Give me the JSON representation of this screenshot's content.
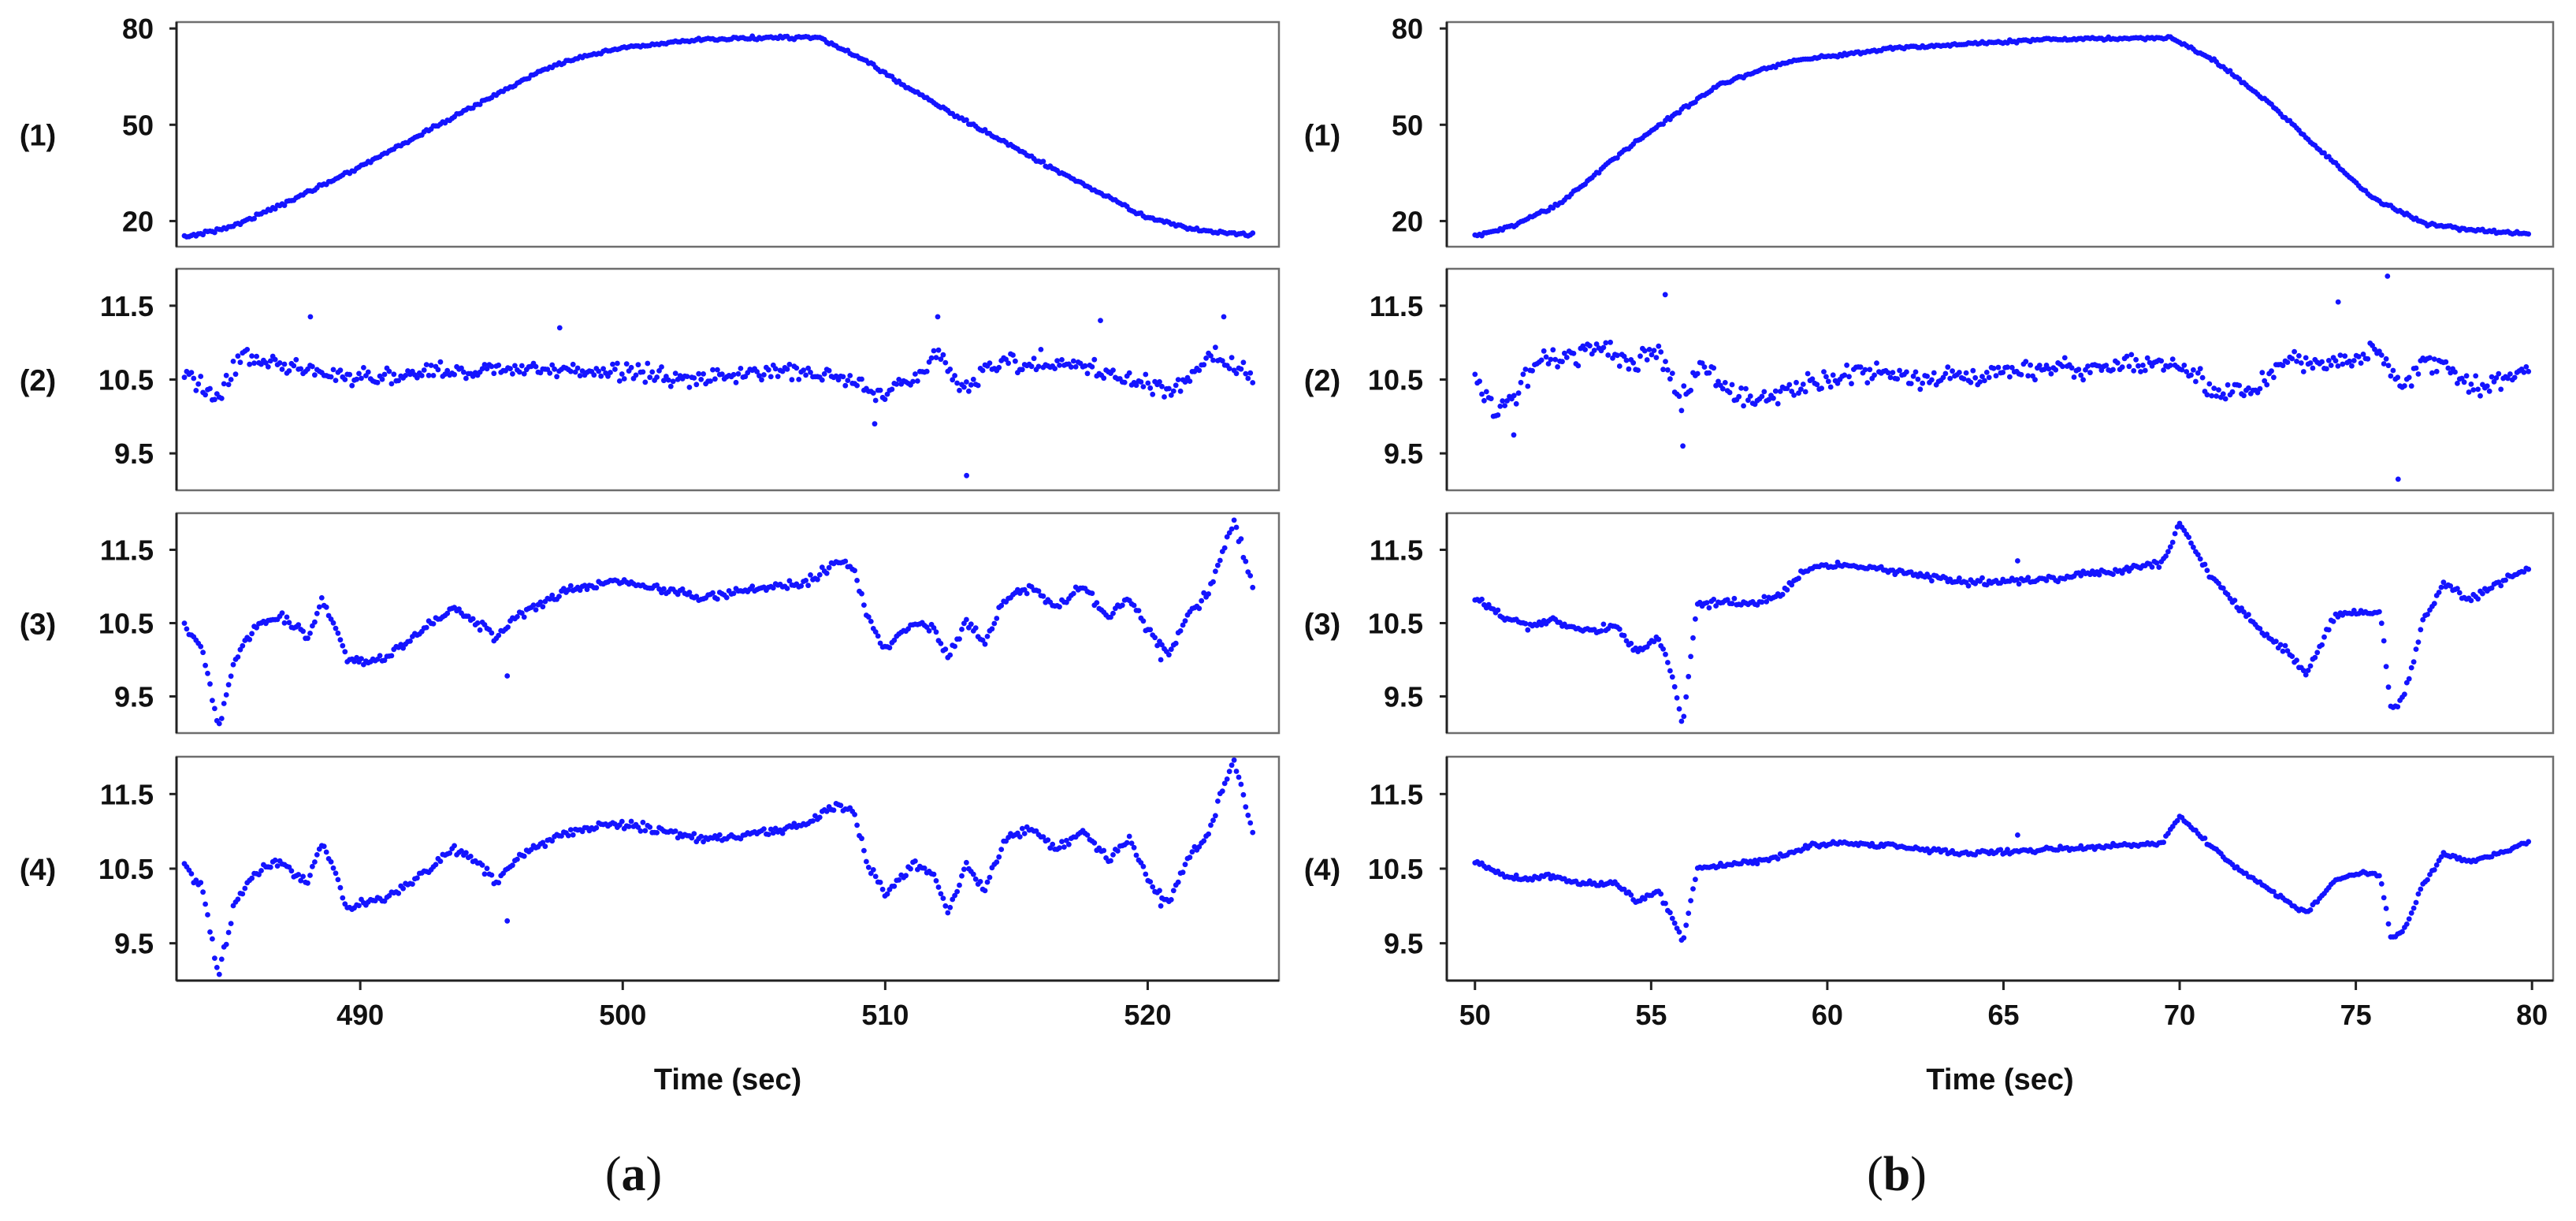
{
  "figure": {
    "caption_a": "a",
    "caption_b": "b"
  },
  "chart_data": [
    {
      "id": "a",
      "type": "scatter",
      "xlabel": "Time (sec)",
      "x_ticks": [
        490,
        500,
        510,
        520
      ],
      "xlim": [
        483,
        525
      ],
      "x_range": [
        483.3,
        524.0
      ],
      "panels": [
        {
          "label": "(1)",
          "ylim": [
            12,
            82
          ],
          "y_ticks": [
            "20",
            "50",
            "80"
          ],
          "y_tick_values": [
            20,
            50,
            80
          ],
          "series_color": "#1414ff",
          "dot_size": 3.4,
          "x": [
            483.3,
            485,
            487,
            490,
            493,
            496,
            497.5,
            500,
            503,
            506,
            507.5,
            509,
            512,
            516,
            520,
            522,
            523.2,
            524
          ],
          "y": [
            15.0,
            18,
            25,
            37,
            50,
            63,
            69,
            74,
            76.5,
            77.3,
            77,
            71,
            56,
            38,
            21,
            17,
            16,
            16
          ],
          "noise_amp": 0.05
        },
        {
          "label": "(2)",
          "ylim": [
            9.0,
            12.0
          ],
          "y_ticks": [
            "9.5",
            "10.5",
            "11.5"
          ],
          "y_tick_values": [
            9.5,
            10.5,
            11.5
          ],
          "series_color": "#1414ff",
          "dot_size": 3.4,
          "x": [
            483.3,
            484.5,
            485.5,
            487,
            489,
            491,
            493,
            495,
            497,
            500,
            503,
            505,
            507,
            509,
            510,
            511,
            512,
            513,
            514,
            516,
            518,
            519,
            520,
            521,
            522.5,
            524
          ],
          "y": [
            10.6,
            10.25,
            10.8,
            10.7,
            10.55,
            10.55,
            10.6,
            10.65,
            10.65,
            10.6,
            10.5,
            10.6,
            10.6,
            10.45,
            10.3,
            10.5,
            10.85,
            10.35,
            10.7,
            10.75,
            10.65,
            10.5,
            10.45,
            10.35,
            10.85,
            10.5
          ],
          "noise_amp": 0.12,
          "outliers": [
            [
              513.1,
              9.2
            ],
            [
              488.1,
              11.35
            ],
            [
              512.0,
              11.35
            ],
            [
              497.6,
              11.2
            ],
            [
              518.2,
              11.3
            ],
            [
              522.9,
              11.35
            ],
            [
              509.6,
              9.9
            ]
          ]
        },
        {
          "label": "(3)",
          "ylim": [
            9.0,
            12.0
          ],
          "y_ticks": [
            "9.5",
            "10.5",
            "11.5"
          ],
          "y_tick_values": [
            9.5,
            10.5,
            11.5
          ],
          "series_color": "#1414ff",
          "dot_size": 3.4,
          "x": [
            483.3,
            484.0,
            484.6,
            485.2,
            486,
            487,
            488,
            488.5,
            489,
            489.5,
            490.2,
            491,
            492,
            493.5,
            494.5,
            495.2,
            496,
            497,
            498,
            499.5,
            501,
            503,
            505,
            507,
            508.2,
            508.8,
            509.3,
            510,
            511,
            511.8,
            512.4,
            513.1,
            513.8,
            514.5,
            515.5,
            516.5,
            517.5,
            518.5,
            519.3,
            520.1,
            520.8,
            521.5,
            522.3,
            522.8,
            523.3,
            524
          ],
          "y": [
            10.5,
            10.15,
            9.05,
            10.0,
            10.45,
            10.6,
            10.3,
            10.8,
            10.5,
            10.0,
            9.95,
            10.05,
            10.3,
            10.7,
            10.5,
            10.3,
            10.6,
            10.8,
            10.95,
            11.05,
            11.0,
            10.85,
            10.95,
            11.05,
            11.35,
            11.25,
            10.6,
            10.15,
            10.5,
            10.45,
            10.0,
            10.55,
            10.2,
            10.8,
            11.0,
            10.7,
            11.0,
            10.6,
            10.85,
            10.35,
            10.05,
            10.6,
            10.9,
            11.4,
            11.9,
            11.0
          ],
          "noise_amp": 0.06,
          "outliers": [
            [
              495.6,
              9.78
            ],
            [
              520.5,
              10.0
            ]
          ]
        },
        {
          "label": "(4)",
          "ylim": [
            9.0,
            12.0
          ],
          "y_ticks": [
            "9.5",
            "10.5",
            "11.5"
          ],
          "y_tick_values": [
            9.5,
            10.5,
            11.5
          ],
          "series_color": "#1414ff",
          "dot_size": 3.4,
          "x": [
            483.3,
            484.0,
            484.6,
            485.2,
            486,
            487,
            488,
            488.5,
            489,
            489.5,
            490.2,
            491,
            492,
            493.5,
            494.5,
            495.2,
            496,
            497,
            498,
            499.5,
            501,
            503,
            505,
            507,
            508.2,
            508.8,
            509.3,
            510,
            511,
            511.8,
            512.4,
            513.1,
            513.8,
            514.5,
            515.5,
            516.5,
            517.5,
            518.5,
            519.3,
            520.1,
            520.8,
            521.5,
            522.3,
            522.8,
            523.3,
            524
          ],
          "y": [
            10.55,
            10.2,
            9.05,
            10.05,
            10.45,
            10.6,
            10.3,
            10.85,
            10.5,
            9.95,
            10.05,
            10.1,
            10.35,
            10.75,
            10.6,
            10.3,
            10.65,
            10.85,
            11.0,
            11.1,
            11.05,
            10.9,
            10.95,
            11.1,
            11.35,
            11.25,
            10.6,
            10.15,
            10.55,
            10.45,
            9.9,
            10.55,
            10.2,
            10.85,
            11.05,
            10.75,
            11.0,
            10.65,
            10.9,
            10.3,
            10.05,
            10.6,
            10.95,
            11.5,
            11.95,
            11.0
          ],
          "noise_amp": 0.06,
          "outliers": [
            [
              495.6,
              9.8
            ],
            [
              520.5,
              10.0
            ]
          ]
        }
      ]
    },
    {
      "id": "b",
      "type": "scatter",
      "xlabel": "Time (sec)",
      "x_ticks": [
        50,
        55,
        60,
        65,
        70,
        75,
        80
      ],
      "xlim": [
        49.2,
        80.6
      ],
      "x_range": [
        50.0,
        79.9
      ],
      "panels": [
        {
          "label": "(1)",
          "ylim": [
            12,
            82
          ],
          "y_ticks": [
            "20",
            "50",
            "80"
          ],
          "y_tick_values": [
            20,
            50,
            80
          ],
          "series_color": "#1414ff",
          "dot_size": 3.4,
          "x": [
            50.0,
            51,
            52.5,
            54,
            55.5,
            57,
            59,
            62,
            66,
            69,
            69.8,
            71,
            72.5,
            74,
            75.5,
            77,
            78.5,
            79.9
          ],
          "y": [
            15.5,
            18,
            26,
            40,
            52,
            63,
            70,
            74,
            76.5,
            77,
            76.8,
            70,
            57,
            42,
            27,
            19,
            17,
            16
          ],
          "noise_amp": 0.05
        },
        {
          "label": "(2)",
          "ylim": [
            9.0,
            12.0
          ],
          "y_ticks": [
            "9.5",
            "10.5",
            "11.5"
          ],
          "y_tick_values": [
            9.5,
            10.5,
            11.5
          ],
          "series_color": "#1414ff",
          "dot_size": 3.4,
          "x": [
            50,
            50.6,
            51.2,
            52,
            52.8,
            53.6,
            54.4,
            55.2,
            55.8,
            56.4,
            57.2,
            58,
            59,
            61,
            63,
            65,
            67,
            69,
            70,
            71,
            72,
            73,
            74,
            75,
            75.7,
            76.3,
            77,
            77.6,
            78.4,
            79.2,
            79.9
          ],
          "y": [
            10.5,
            10.0,
            10.35,
            10.8,
            10.85,
            10.9,
            10.7,
            10.95,
            10.2,
            10.7,
            10.35,
            10.2,
            10.4,
            10.6,
            10.5,
            10.6,
            10.65,
            10.7,
            10.7,
            10.3,
            10.3,
            10.75,
            10.7,
            10.8,
            10.9,
            10.4,
            10.8,
            10.65,
            10.4,
            10.5,
            10.6
          ],
          "noise_amp": 0.14,
          "outliers": [
            [
              55.4,
              11.65
            ],
            [
              75.9,
              11.9
            ],
            [
              76.2,
              9.15
            ],
            [
              55.9,
              9.6
            ],
            [
              74.5,
              11.55
            ],
            [
              51.1,
              9.75
            ]
          ]
        },
        {
          "label": "(3)",
          "ylim": [
            9.0,
            12.0
          ],
          "y_ticks": [
            "9.5",
            "10.5",
            "11.5"
          ],
          "y_tick_values": [
            9.5,
            10.5,
            11.5
          ],
          "series_color": "#1414ff",
          "dot_size": 3.4,
          "x": [
            50,
            50.8,
            51.5,
            52.2,
            53,
            54,
            54.6,
            55.2,
            55.6,
            55.9,
            56.3,
            57,
            58,
            58.6,
            59.5,
            60.5,
            62,
            64,
            66,
            68,
            69.5,
            70,
            70.8,
            71.5,
            72.3,
            73.1,
            73.6,
            74.4,
            75.2,
            75.7,
            76.0,
            76.4,
            76.9,
            77.5,
            78.2,
            79,
            79.9
          ],
          "y": [
            10.85,
            10.6,
            10.45,
            10.55,
            10.4,
            10.45,
            10.1,
            10.3,
            9.8,
            9.1,
            10.75,
            10.8,
            10.75,
            10.9,
            11.25,
            11.3,
            11.2,
            11.05,
            11.1,
            11.2,
            11.3,
            11.85,
            11.2,
            10.8,
            10.4,
            10.1,
            9.8,
            10.6,
            10.65,
            10.65,
            9.3,
            9.55,
            10.5,
            11.05,
            10.8,
            11.05,
            11.25
          ],
          "noise_amp": 0.05,
          "outliers": [
            [
              65.4,
              11.35
            ]
          ]
        },
        {
          "label": "(4)",
          "ylim": [
            9.0,
            12.0
          ],
          "y_ticks": [
            "9.5",
            "10.5",
            "11.5"
          ],
          "y_tick_values": [
            9.5,
            10.5,
            11.5
          ],
          "series_color": "#1414ff",
          "dot_size": 3.4,
          "x": [
            50,
            50.8,
            51.5,
            52.2,
            53,
            54,
            54.6,
            55.2,
            55.6,
            55.9,
            56.3,
            57,
            58,
            58.6,
            59.5,
            60.5,
            62,
            64,
            66,
            68,
            69.5,
            70,
            70.8,
            71.5,
            72.3,
            73.1,
            73.6,
            74.4,
            75.2,
            75.7,
            76.0,
            76.4,
            76.9,
            77.5,
            78.2,
            79,
            79.9
          ],
          "y": [
            10.6,
            10.4,
            10.35,
            10.4,
            10.3,
            10.3,
            10.05,
            10.2,
            9.85,
            9.5,
            10.5,
            10.55,
            10.6,
            10.65,
            10.8,
            10.85,
            10.8,
            10.7,
            10.75,
            10.8,
            10.85,
            11.2,
            10.85,
            10.55,
            10.3,
            10.05,
            9.9,
            10.35,
            10.45,
            10.4,
            9.55,
            9.7,
            10.3,
            10.7,
            10.6,
            10.7,
            10.85
          ],
          "noise_amp": 0.03,
          "outliers": [
            [
              65.4,
              10.95
            ]
          ]
        }
      ]
    }
  ]
}
